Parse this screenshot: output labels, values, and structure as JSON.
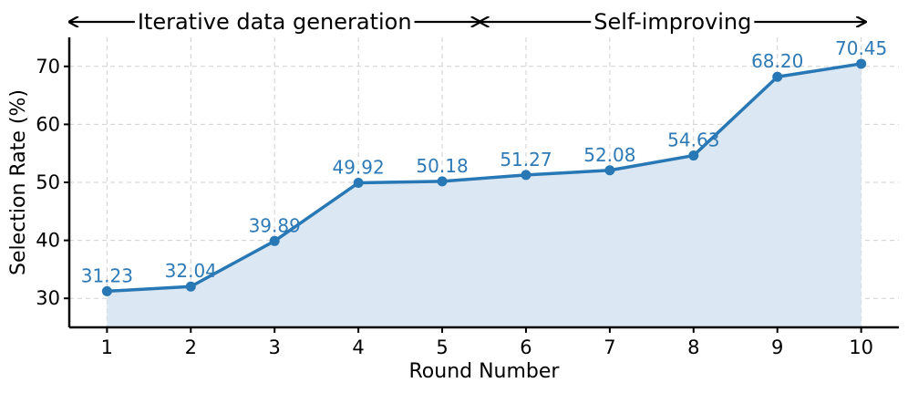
{
  "chart_data": {
    "type": "line",
    "x": [
      1,
      2,
      3,
      4,
      5,
      6,
      7,
      8,
      9,
      10
    ],
    "series": [
      {
        "values": [
          31.23,
          32.04,
          39.89,
          49.92,
          50.18,
          51.27,
          52.08,
          54.63,
          68.2,
          70.45
        ],
        "labels": [
          "31.23",
          "32.04",
          "39.89",
          "49.92",
          "50.18",
          "51.27",
          "52.08",
          "54.63",
          "68.20",
          "70.45"
        ],
        "color": "#2878b5",
        "fill_color": "#dbe7f2"
      }
    ],
    "xlabel": "Round Number",
    "ylabel": "Selection Rate (%)",
    "xlim": [
      0.55,
      10.45
    ],
    "ylim": [
      25,
      75
    ],
    "xticks": [
      1,
      2,
      3,
      4,
      5,
      6,
      7,
      8,
      9,
      10
    ],
    "yticks": [
      30,
      40,
      50,
      60,
      70
    ],
    "grid": true,
    "annotations": [
      {
        "text": "Iterative data generation",
        "from_x": 0.55,
        "to_x": 5.45,
        "style": "double-arrow"
      },
      {
        "text": "Self-improving",
        "from_x": 5.45,
        "to_x": 10.05,
        "style": "double-arrow"
      }
    ]
  }
}
